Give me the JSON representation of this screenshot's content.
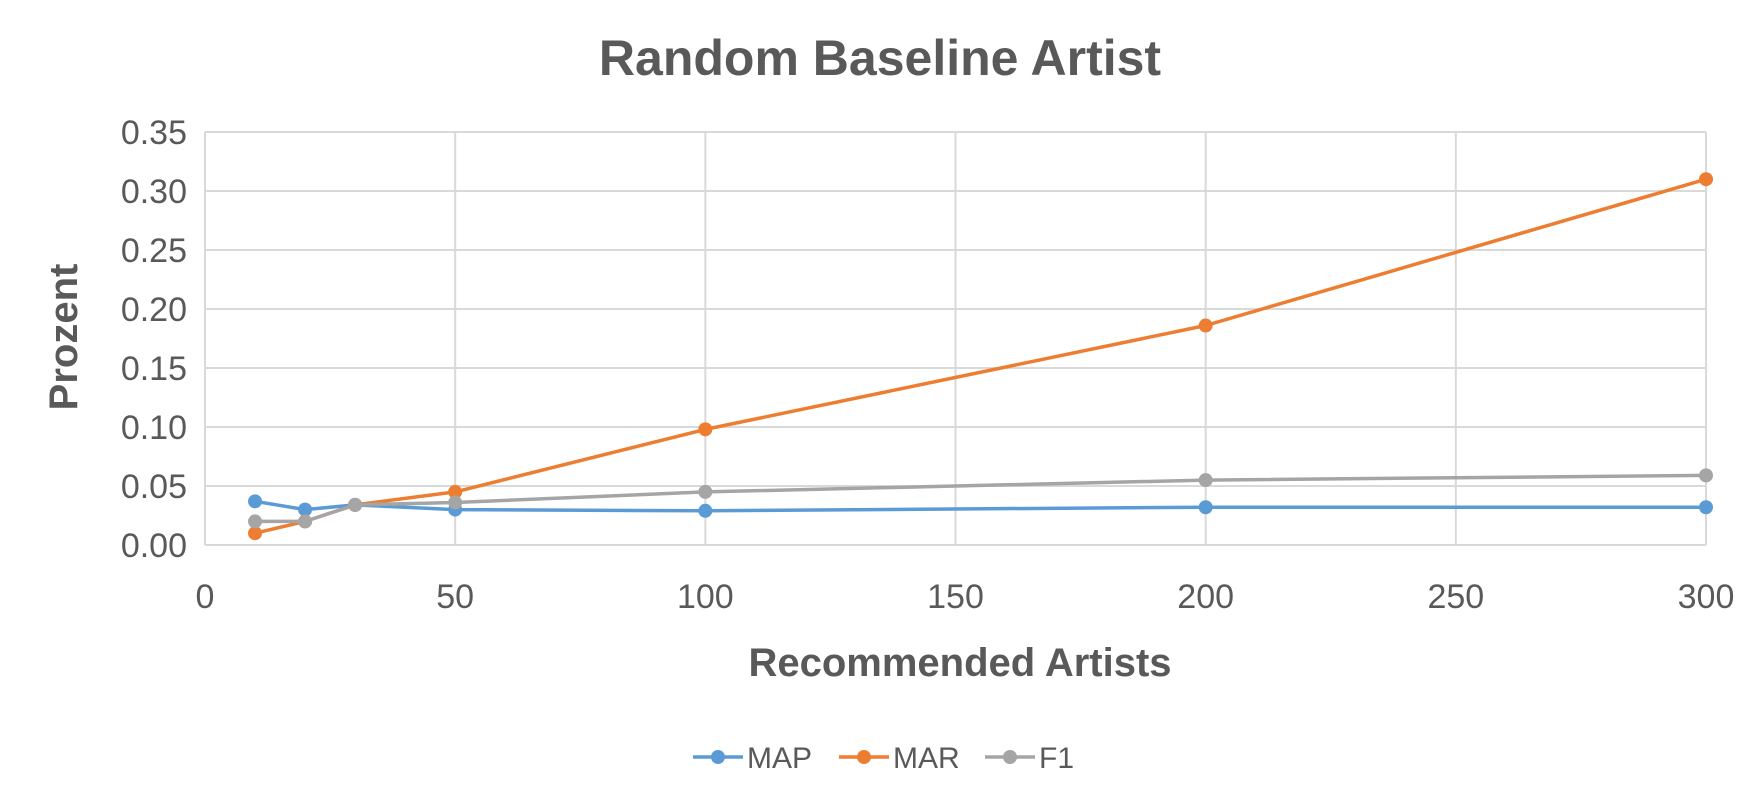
{
  "chart_data": {
    "type": "line",
    "title": "Random Baseline Artist",
    "xlabel": "Recommended Artists",
    "ylabel": "Prozent",
    "xlim": [
      0,
      300
    ],
    "ylim": [
      0,
      0.35
    ],
    "x_ticks": [
      0,
      50,
      100,
      150,
      200,
      250,
      300
    ],
    "x_tick_labels": [
      "0",
      "50",
      "100",
      "150",
      "200",
      "250",
      "300"
    ],
    "y_ticks": [
      0,
      0.05,
      0.1,
      0.15,
      0.2,
      0.25,
      0.3,
      0.35
    ],
    "y_tick_labels": [
      "0.00",
      "0.05",
      "0.10",
      "0.15",
      "0.20",
      "0.25",
      "0.30",
      "0.35"
    ],
    "grid": true,
    "legend_position": "bottom-center",
    "x": [
      10,
      20,
      30,
      50,
      100,
      200,
      300
    ],
    "series": [
      {
        "name": "MAP",
        "color": "#5b9bd5",
        "values": [
          0.037,
          0.03,
          0.034,
          0.03,
          0.029,
          0.032,
          0.032
        ]
      },
      {
        "name": "MAR",
        "color": "#ed7d31",
        "values": [
          0.01,
          0.02,
          0.034,
          0.045,
          0.098,
          0.186,
          0.31
        ]
      },
      {
        "name": "F1",
        "color": "#a5a5a5",
        "values": [
          0.02,
          0.02,
          0.034,
          0.036,
          0.045,
          0.055,
          0.059
        ]
      }
    ]
  }
}
